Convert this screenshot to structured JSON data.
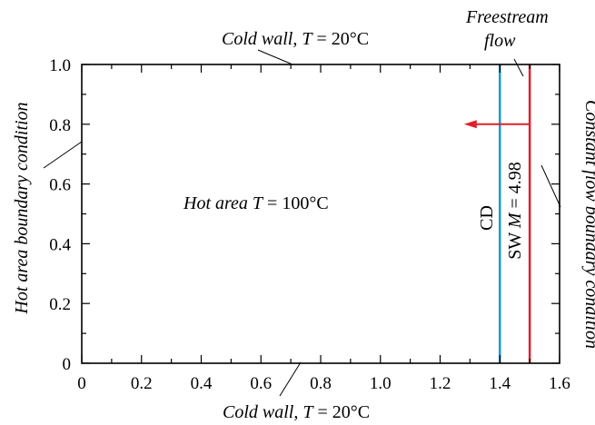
{
  "chart_data": {
    "type": "diagram",
    "xlim": [
      0,
      1.6
    ],
    "ylim": [
      0,
      1.0
    ],
    "x_ticks": [
      "0",
      "0.2",
      "0.4",
      "0.6",
      "0.8",
      "1.0",
      "1.2",
      "1.4",
      "1.6"
    ],
    "x_tick_values": [
      0,
      0.2,
      0.4,
      0.6,
      0.8,
      1.0,
      1.2,
      1.4,
      1.6
    ],
    "y_ticks": [
      "0",
      "0.2",
      "0.4",
      "0.6",
      "0.8",
      "1.0"
    ],
    "y_tick_values": [
      0,
      0.2,
      0.4,
      0.6,
      0.8,
      1.0
    ],
    "minor_x_step": 0.1,
    "minor_y_step": 0.1,
    "lines": [
      {
        "label": "CD",
        "x": 1.4,
        "color": "#1a9ad6"
      },
      {
        "label": "SW",
        "x": 1.5,
        "color": "#e0202a"
      }
    ],
    "arrow": {
      "y": 0.8,
      "x_from": 1.5,
      "x_to": 1.28,
      "color": "#e0202a"
    },
    "annotations": {
      "top_wall": {
        "prefix": "Cold wall",
        "sep": ", ",
        "var": "T",
        "value": " = 20°C"
      },
      "bottom_wall": {
        "prefix": "Cold wall",
        "sep": ", ",
        "var": "T",
        "value": " = 20°C"
      },
      "hot_area": {
        "prefix": "Hot area ",
        "var": "T",
        "value": " = 100°C"
      },
      "left_bc": "Hot area boundary condition",
      "right_bc": "Constant flow boundary condition",
      "freestream_1": "Freestream",
      "freestream_2": "flow",
      "cd_label": "CD",
      "sw_prefix": "SW ",
      "sw_var": "M",
      "sw_value": " = 4.98"
    }
  }
}
